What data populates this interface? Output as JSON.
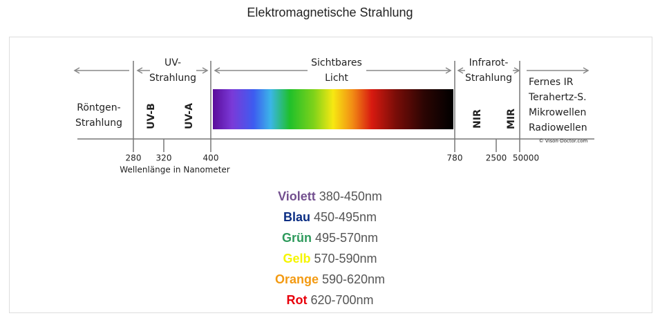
{
  "title": "Elektromagnetische Strahlung",
  "diagram": {
    "regions": [
      {
        "lines": [
          "Röntgen-",
          "Strahlung"
        ]
      },
      {
        "lines": [
          "UV-",
          "Strahlung"
        ],
        "sub": [
          "UV-B",
          "UV-A"
        ]
      },
      {
        "lines": [
          "Sichtbares",
          "Licht"
        ]
      },
      {
        "lines": [
          "Infrarot-",
          "Strahlung"
        ],
        "sub": [
          "NIR",
          "MIR"
        ]
      },
      {
        "lines": [
          "Fernes IR",
          "Terahertz-S.",
          "Mikrowellen",
          "Radiowellen"
        ]
      }
    ],
    "ticks": [
      "280",
      "320",
      "400",
      "780",
      "2500",
      "50000"
    ],
    "axis_label": "Wellenlänge in Nanometer",
    "copyright": "© Vison-Doctor.com"
  },
  "colors": [
    {
      "name": "Violett",
      "range": "380-450nm",
      "color": "#73508f"
    },
    {
      "name": "Blau",
      "range": "450-495nm",
      "color": "#0a2d83"
    },
    {
      "name": "Grün",
      "range": "495-570nm",
      "color": "#2e9a5c"
    },
    {
      "name": "Gelb",
      "range": "570-590nm",
      "color": "#f5f500"
    },
    {
      "name": "Orange",
      "range": "590-620nm",
      "color": "#f39a12"
    },
    {
      "name": "Rot",
      "range": "620-700nm",
      "color": "#e8000b"
    }
  ]
}
